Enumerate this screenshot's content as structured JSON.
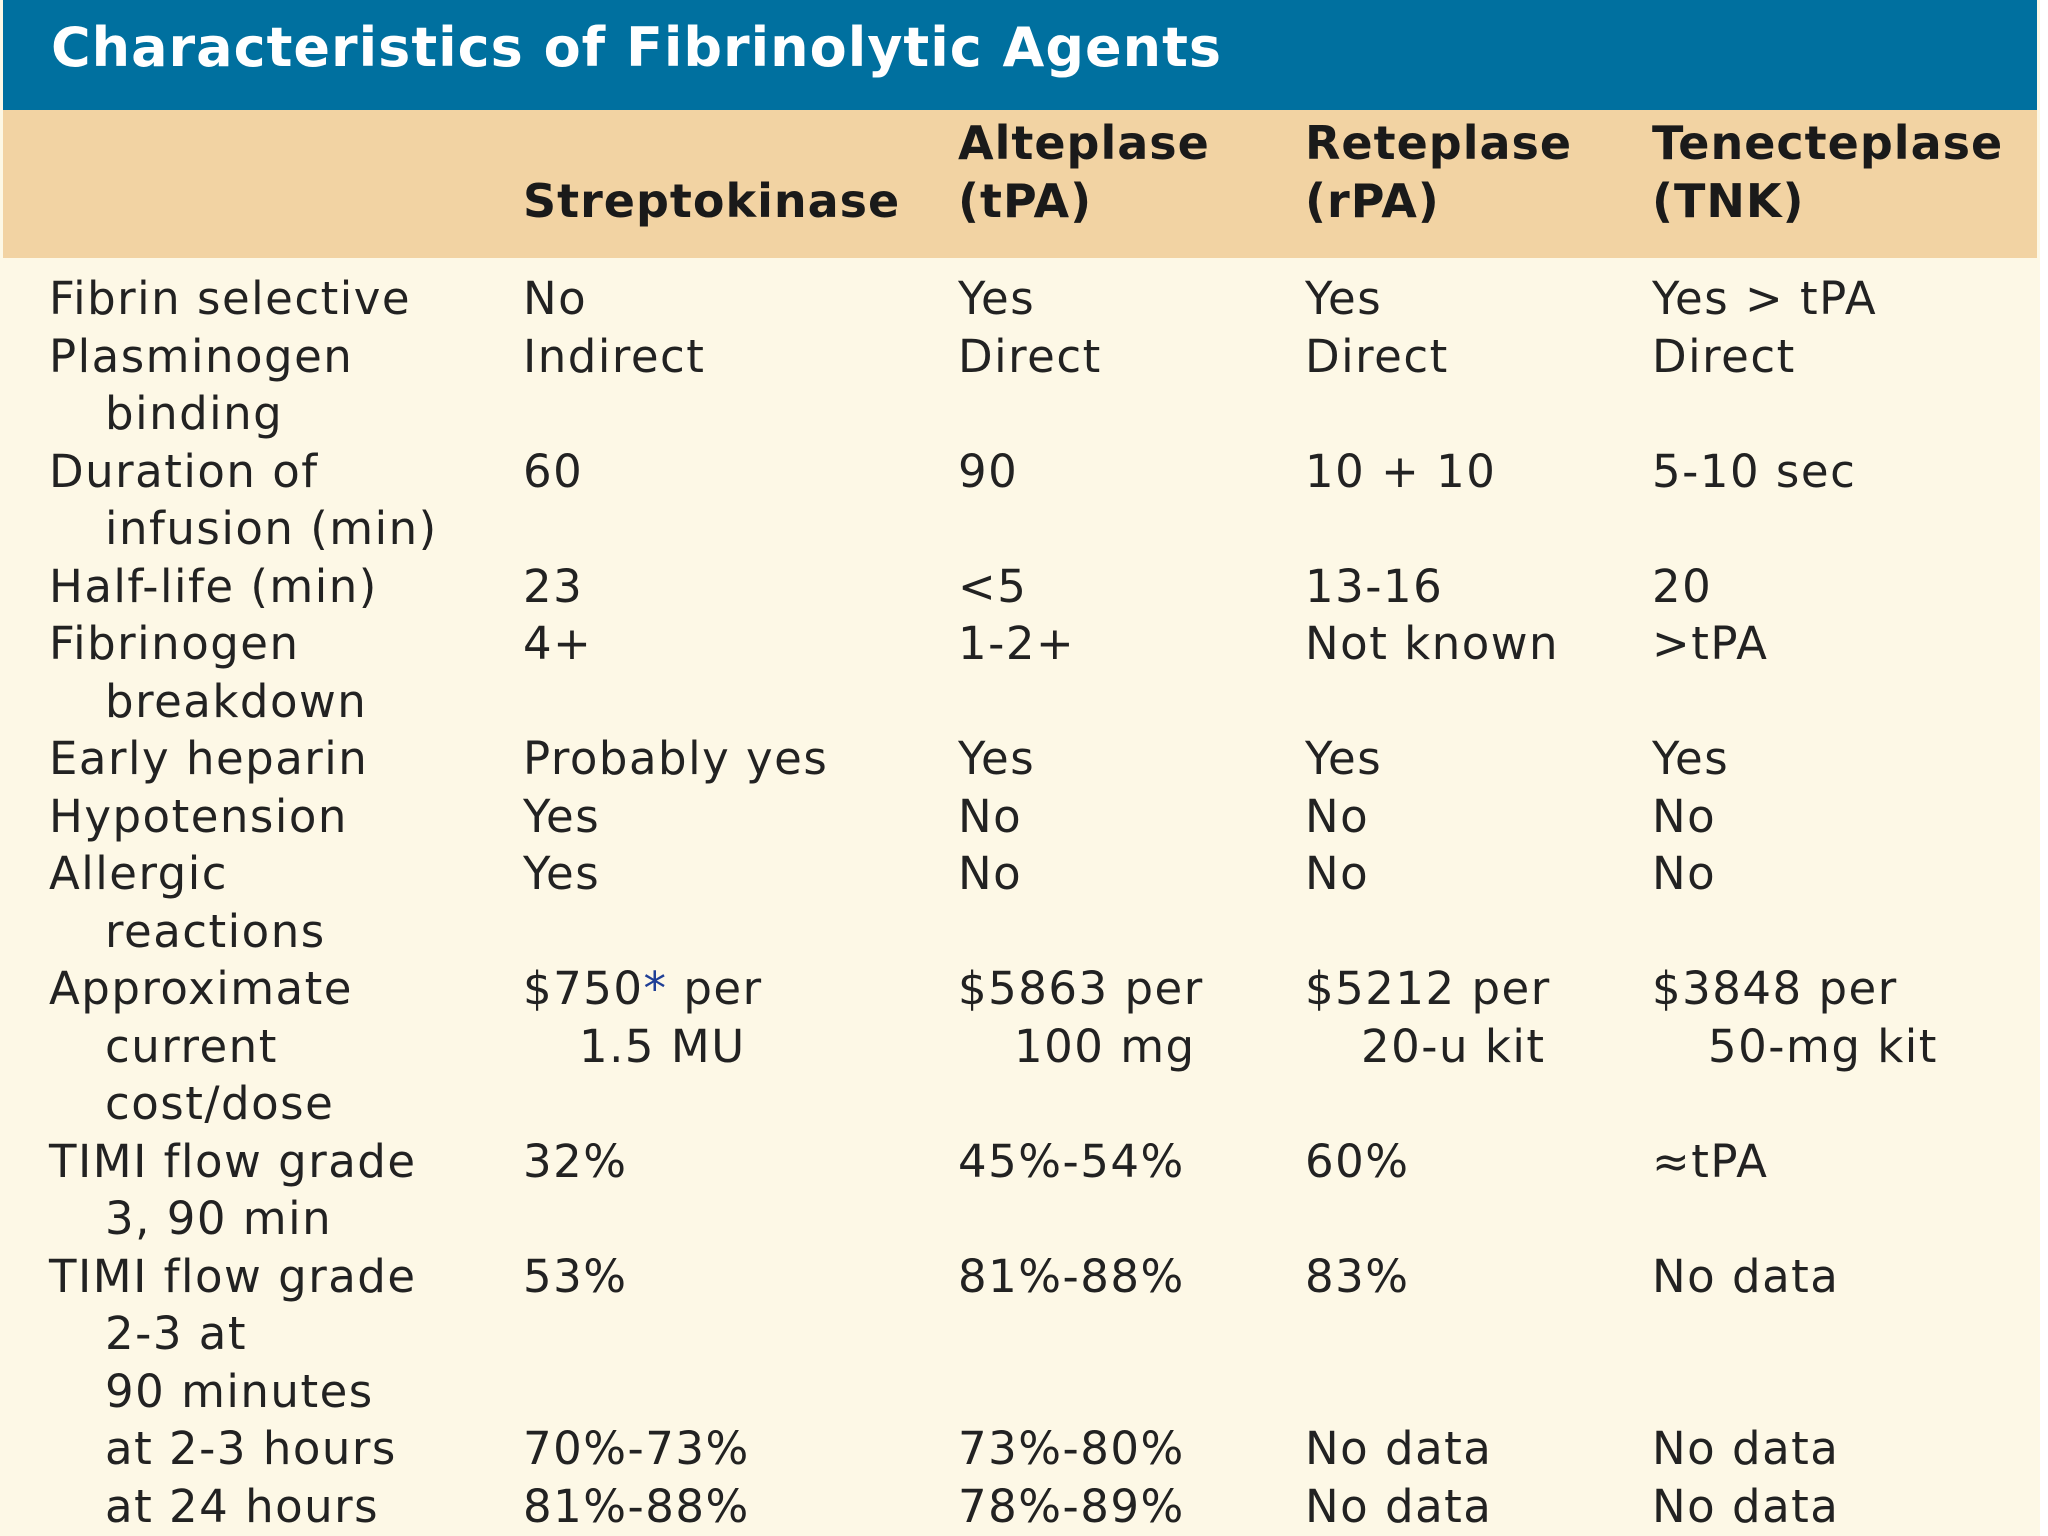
{
  "title": "Characteristics of Fibrinolytic Agents",
  "columns": [
    {
      "line1": "",
      "line2": "Streptokinase"
    },
    {
      "line1": "Alteplase",
      "line2": "(tPA)"
    },
    {
      "line1": "Reteplase",
      "line2": "(rPA)"
    },
    {
      "line1": "Tenecteplase",
      "line2": "(TNK)"
    }
  ],
  "rows": [
    {
      "label": [
        "Fibrin selective"
      ],
      "values": [
        [
          "No"
        ],
        [
          "Yes"
        ],
        [
          "Yes"
        ],
        [
          "Yes > tPA"
        ]
      ]
    },
    {
      "label": [
        "Plasminogen",
        "binding"
      ],
      "values": [
        [
          "Indirect"
        ],
        [
          "Direct"
        ],
        [
          "Direct"
        ],
        [
          "Direct"
        ]
      ]
    },
    {
      "label": [
        "Duration of",
        "infusion (min)"
      ],
      "values": [
        [
          "60"
        ],
        [
          "90"
        ],
        [
          "10 + 10"
        ],
        [
          "5-10 sec"
        ]
      ]
    },
    {
      "label": [
        "Half-life (min)"
      ],
      "values": [
        [
          "23"
        ],
        [
          "<5"
        ],
        [
          "13-16"
        ],
        [
          "20"
        ]
      ]
    },
    {
      "label": [
        "Fibrinogen",
        "breakdown"
      ],
      "values": [
        [
          "4+"
        ],
        [
          "1-2+"
        ],
        [
          "Not known"
        ],
        [
          ">tPA"
        ]
      ]
    },
    {
      "label": [
        "Early heparin"
      ],
      "values": [
        [
          "Probably yes"
        ],
        [
          "Yes"
        ],
        [
          "Yes"
        ],
        [
          "Yes"
        ]
      ]
    },
    {
      "label": [
        "Hypotension"
      ],
      "values": [
        [
          "Yes"
        ],
        [
          "No"
        ],
        [
          "No"
        ],
        [
          "No"
        ]
      ]
    },
    {
      "label": [
        "Allergic",
        "reactions"
      ],
      "values": [
        [
          "Yes"
        ],
        [
          "No"
        ],
        [
          "No"
        ],
        [
          "No"
        ]
      ]
    },
    {
      "label": [
        "Approximate",
        "current",
        "cost/dose"
      ],
      "values": [
        [
          "$750* per",
          "1.5 MU"
        ],
        [
          "$5863 per",
          "100 mg"
        ],
        [
          "$5212 per",
          "20-u kit"
        ],
        [
          "$3848 per",
          "50-mg kit"
        ]
      ]
    },
    {
      "label": [
        "TIMI flow grade",
        "3, 90 min"
      ],
      "values": [
        [
          "32%"
        ],
        [
          "45%-54%"
        ],
        [
          "60%"
        ],
        [
          "≈tPA"
        ]
      ]
    },
    {
      "label": [
        "TIMI flow grade",
        "2-3 at",
        "90 minutes"
      ],
      "values": [
        [
          "53%"
        ],
        [
          "81%-88%"
        ],
        [
          "83%"
        ],
        [
          "No data"
        ]
      ]
    },
    {
      "label": [
        "at 2-3 hours"
      ],
      "label_indent": true,
      "values": [
        [
          "70%-73%"
        ],
        [
          "73%-80%"
        ],
        [
          "No data"
        ],
        [
          "No data"
        ]
      ]
    },
    {
      "label": [
        "at 24 hours"
      ],
      "label_indent": true,
      "values": [
        [
          "81%-88%"
        ],
        [
          "78%-89%"
        ],
        [
          "No data"
        ],
        [
          "No data"
        ]
      ]
    }
  ],
  "colors": {
    "title_bar": "#00709f",
    "header_band": "#f2d3a3",
    "table_background": "#fdf8e6",
    "asterisk": "#1f3f96"
  }
}
